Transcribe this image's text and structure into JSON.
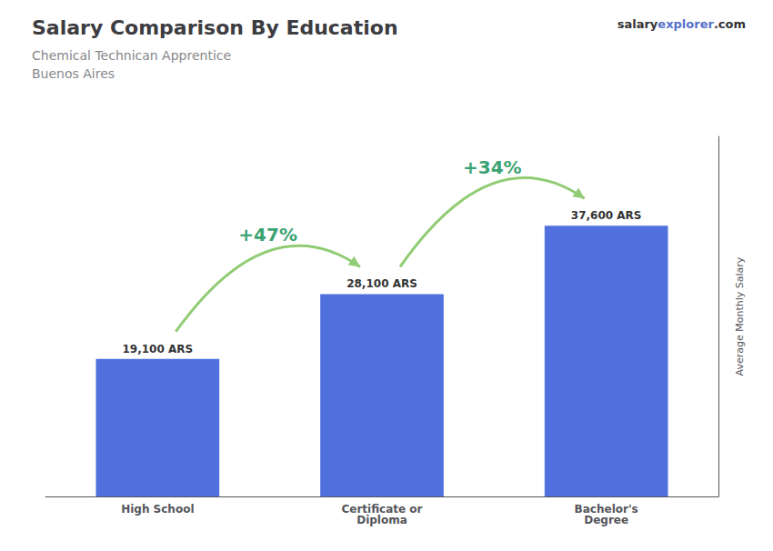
{
  "chart_data": {
    "type": "bar",
    "title": "Salary Comparison By Education",
    "subtitle": [
      "Chemical Technican Apprentice",
      "Buenos Aires"
    ],
    "watermark": [
      "salary",
      "explorer",
      ".com"
    ],
    "ylabel": "Average Monthly Salary",
    "categories": [
      "High School",
      "Certificate or\nDiploma",
      "Bachelor's\nDegree"
    ],
    "values": [
      19100,
      28100,
      37600
    ],
    "value_labels": [
      "19,100 ARS",
      "28,100 ARS",
      "37,600 ARS"
    ],
    "data_labels": true,
    "annotations": [
      "+47%",
      "+34%"
    ],
    "ylim": [
      0,
      50000
    ],
    "tick_labels": "x",
    "grid": false
  }
}
